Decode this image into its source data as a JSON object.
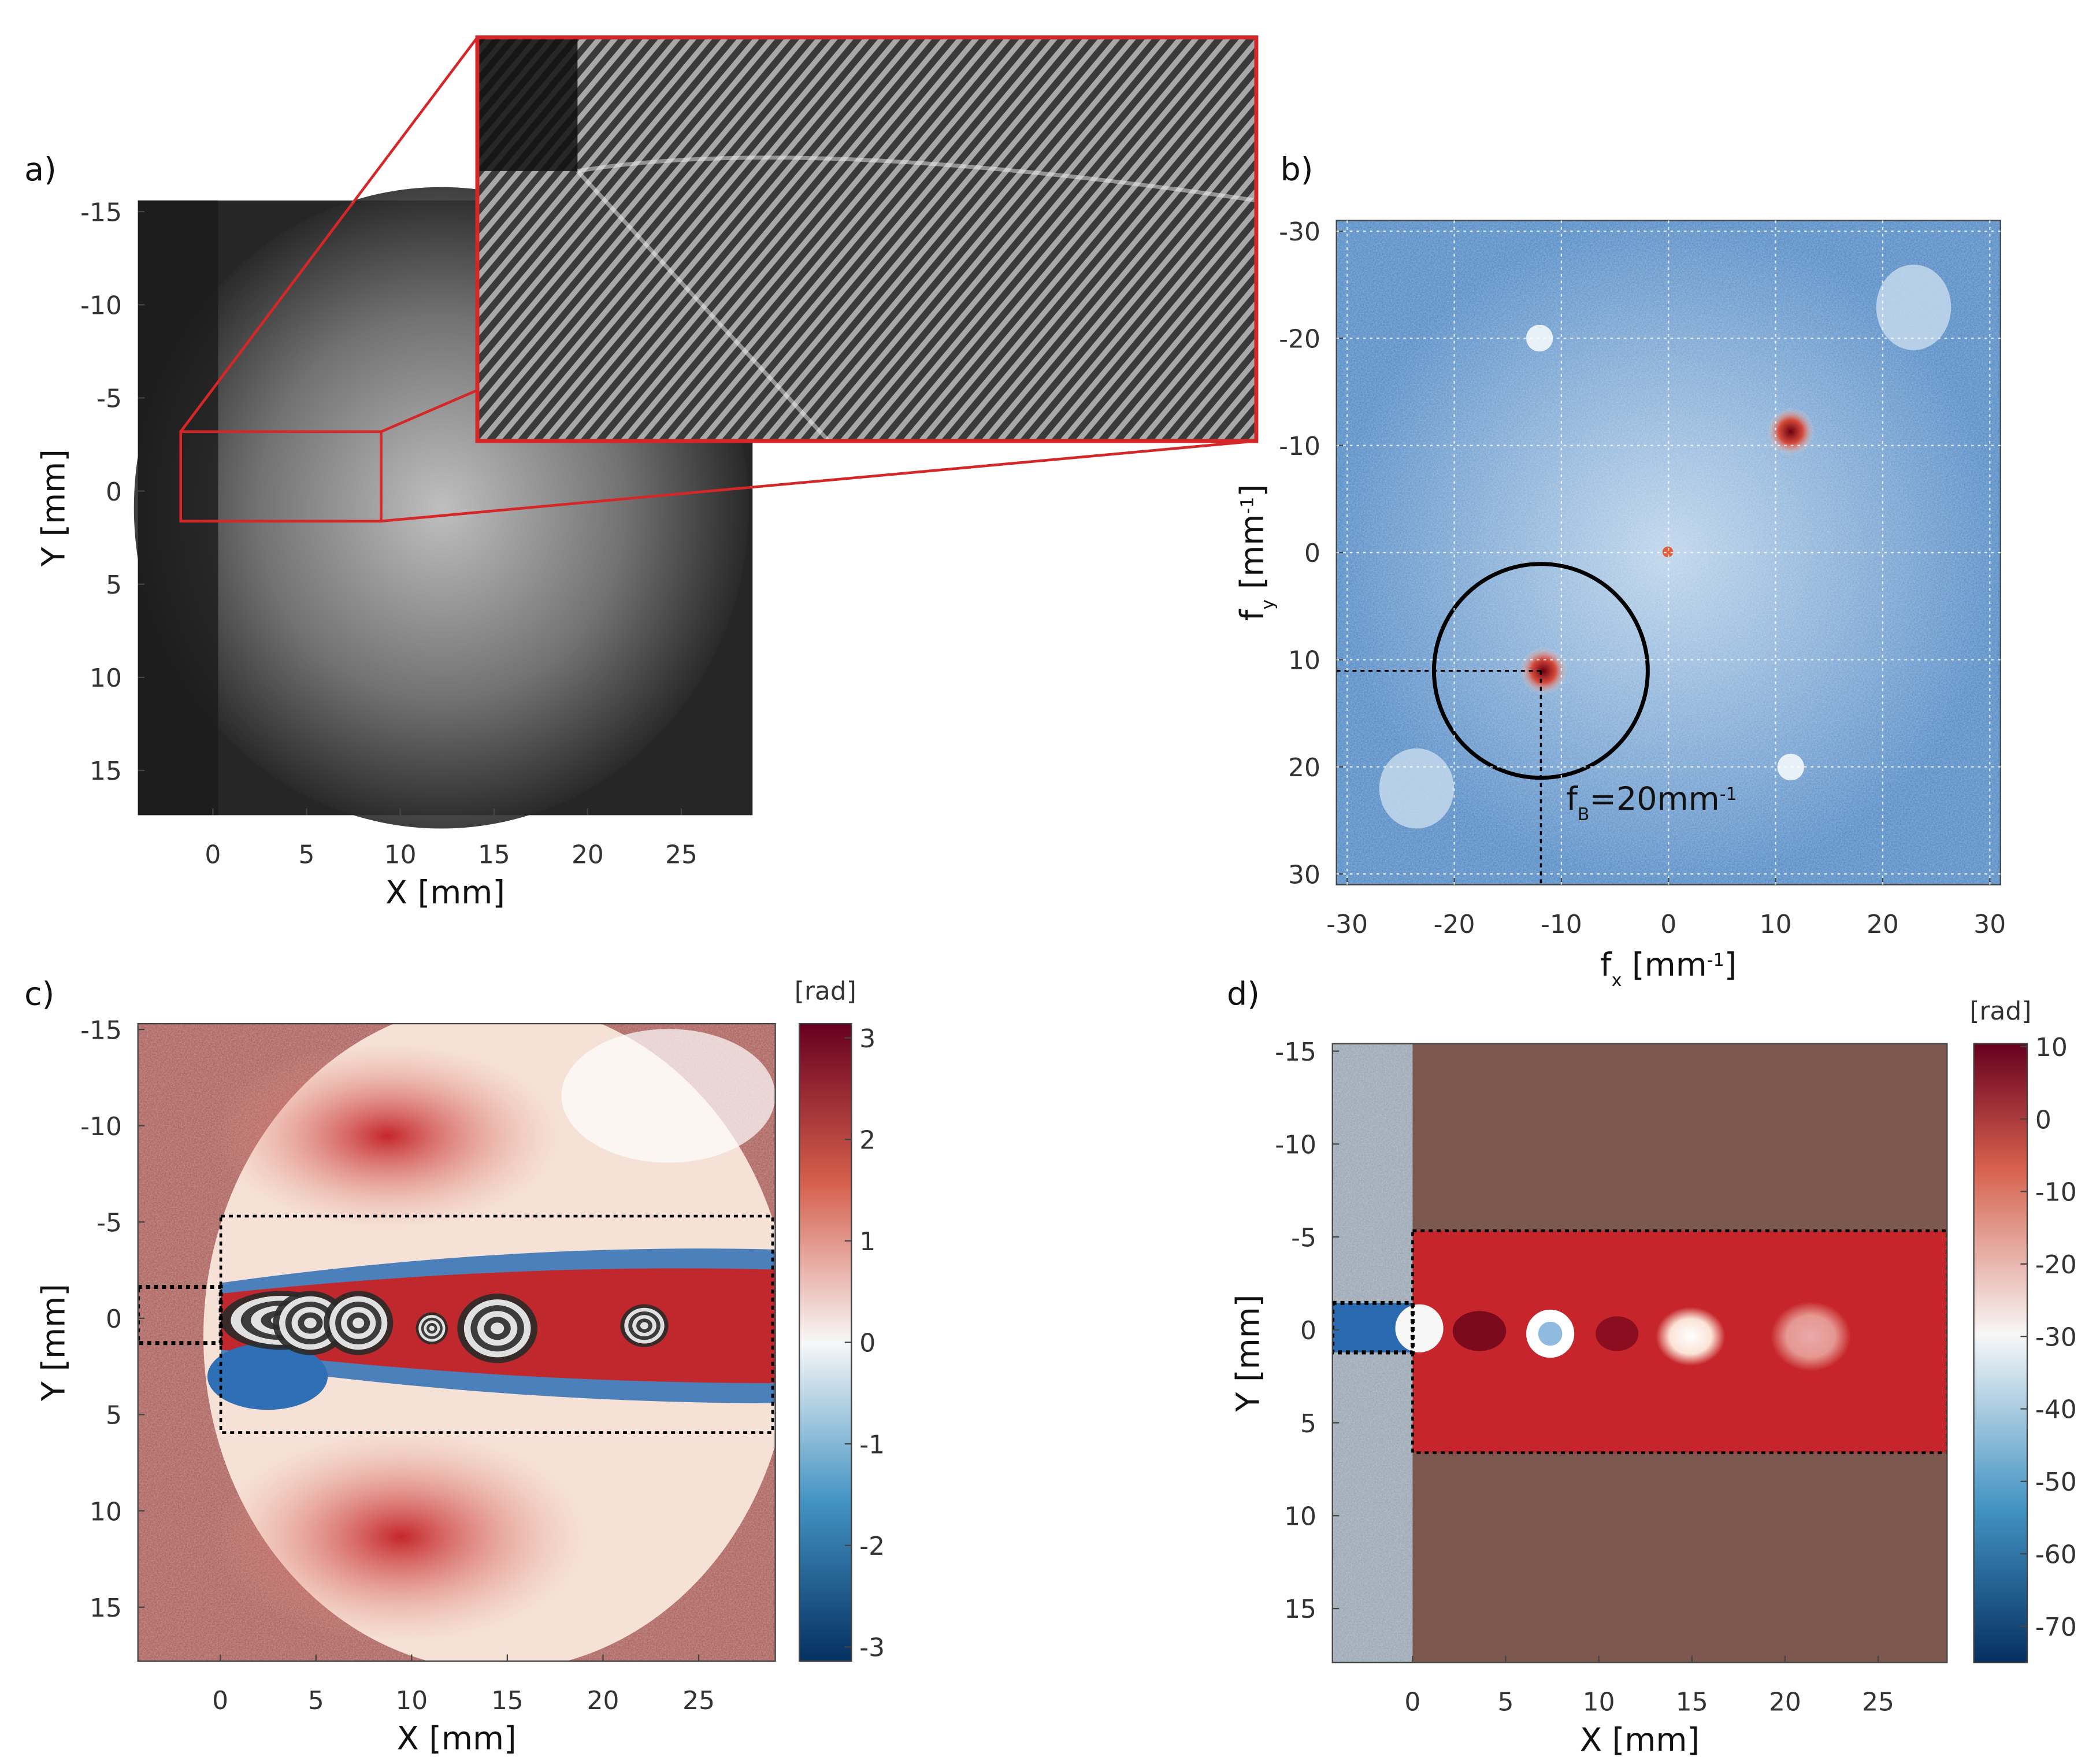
{
  "chart_data": [
    {
      "type": "image",
      "label": "a)",
      "xlabel": "X [mm]",
      "ylabel": "Y [mm]",
      "xlim": [
        -4,
        28.8
      ],
      "ylim": [
        -15.6,
        17.4
      ],
      "xticks": [
        0,
        5,
        10,
        15,
        20,
        25
      ],
      "yticks": [
        -15,
        -10,
        -5,
        0,
        5,
        10,
        15
      ]
    },
    {
      "type": "image",
      "label": "b)",
      "xlabel": [
        "f",
        "x",
        " [mm",
        "-1",
        "]"
      ],
      "ylabel": [
        "f",
        "y",
        " [mm",
        "-1",
        "]"
      ],
      "xlim": [
        -31,
        31
      ],
      "ylim": [
        -31,
        31
      ],
      "xticks": [
        -30,
        -20,
        -10,
        0,
        10,
        20,
        30
      ],
      "yticks": [
        -30,
        -20,
        -10,
        0,
        10,
        20,
        30
      ],
      "grid": true,
      "annotation": [
        "f",
        "B",
        "=20mm",
        "-1"
      ]
    },
    {
      "type": "heatmap",
      "label": "c)",
      "xlabel": "X [mm]",
      "ylabel": "Y [mm]",
      "xlim": [
        -4.3,
        29
      ],
      "ylim": [
        -15.3,
        17.8
      ],
      "xticks": [
        0,
        5,
        10,
        15,
        20,
        25
      ],
      "yticks": [
        -15,
        -10,
        -5,
        0,
        5,
        10,
        15
      ],
      "colorbar": {
        "label": "[rad]",
        "lim": [
          -3.14,
          3.14
        ],
        "ticks": [
          3,
          2,
          1,
          0,
          -1,
          -2,
          -3
        ]
      }
    },
    {
      "type": "heatmap",
      "label": "d)",
      "xlabel": "X [mm]",
      "ylabel": "Y [mm]",
      "xlim": [
        -4.3,
        28.7
      ],
      "ylim": [
        -15.4,
        17.9
      ],
      "xticks": [
        0,
        5,
        10,
        15,
        20,
        25
      ],
      "yticks": [
        -15,
        -10,
        -5,
        0,
        5,
        10,
        15
      ],
      "colorbar": {
        "label": "[rad]",
        "lim": [
          -75,
          10.4
        ],
        "ticks": [
          10,
          0,
          -10,
          -20,
          -30,
          -40,
          -50,
          -60,
          -70
        ]
      }
    }
  ]
}
